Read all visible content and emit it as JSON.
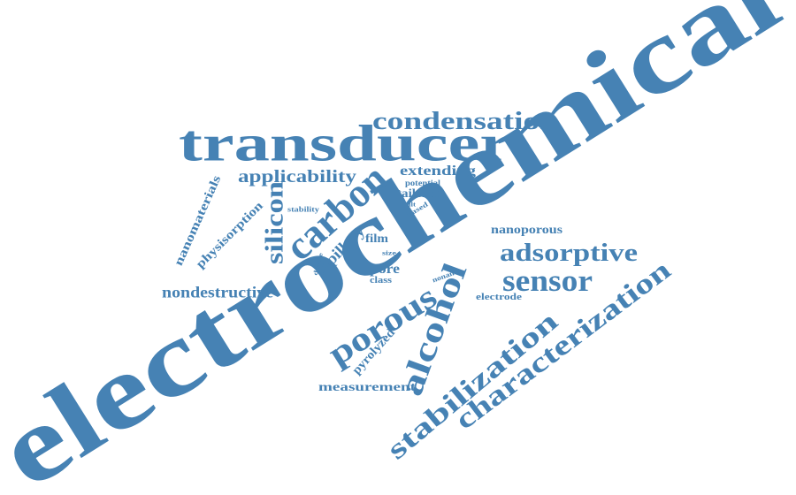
{
  "color": "#4682b4",
  "words": [
    {
      "id": "electrochemical",
      "text": "electrochemical"
    },
    {
      "id": "transducer",
      "text": "transducer"
    },
    {
      "id": "condensation",
      "text": "condensation"
    },
    {
      "id": "applicability",
      "text": "applicability"
    },
    {
      "id": "extending",
      "text": "extending"
    },
    {
      "id": "potential",
      "text": "potential"
    },
    {
      "id": "tailored",
      "text": "tailored"
    },
    {
      "id": "built",
      "text": "built"
    },
    {
      "id": "based",
      "text": "based"
    },
    {
      "id": "carbon",
      "text": "carbon"
    },
    {
      "id": "silicon",
      "text": "silicon"
    },
    {
      "id": "stability",
      "text": "stability"
    },
    {
      "id": "nanomaterials",
      "text": "nanomaterials"
    },
    {
      "id": "physisorption",
      "text": "physisorption"
    },
    {
      "id": "capillary",
      "text": "capillary"
    },
    {
      "id": "device",
      "text": "device"
    },
    {
      "id": "size",
      "text": "size"
    },
    {
      "id": "film",
      "text": "film"
    },
    {
      "id": "pore",
      "text": "pore"
    },
    {
      "id": "class",
      "text": "class"
    },
    {
      "id": "nanoporous",
      "text": "nanoporous"
    },
    {
      "id": "adsorptive",
      "text": "adsorptive"
    },
    {
      "id": "sensor",
      "text": "sensor"
    },
    {
      "id": "nonane",
      "text": "nonane"
    },
    {
      "id": "electrode",
      "text": "electrode"
    },
    {
      "id": "nondestructive",
      "text": "nondestructive"
    },
    {
      "id": "porous",
      "text": "porous"
    },
    {
      "id": "alcohol",
      "text": "alcohol"
    },
    {
      "id": "pyrolyzed",
      "text": "pyrolyzed"
    },
    {
      "id": "measurement",
      "text": "measurement"
    },
    {
      "id": "stabilization",
      "text": "stabilization"
    },
    {
      "id": "characterization",
      "text": "characterization"
    }
  ]
}
